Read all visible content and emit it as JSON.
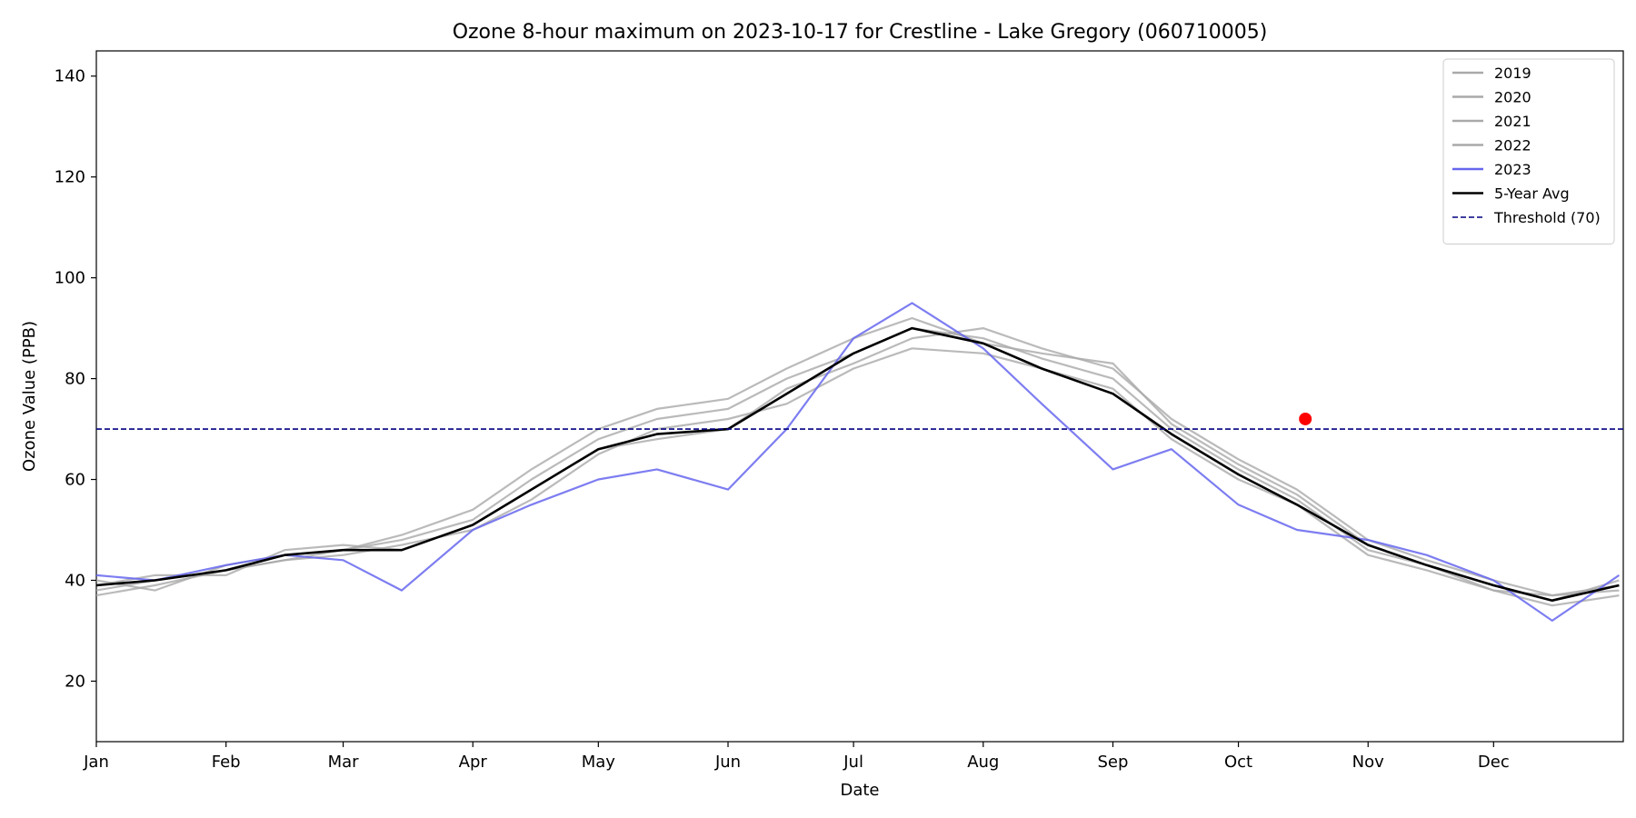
{
  "chart_data": {
    "type": "line",
    "title": "Ozone 8-hour maximum on 2023-10-17 for Crestline - Lake Gregory (060710005)",
    "xlabel": "Date",
    "ylabel": "Ozone Value (PPB)",
    "x_ticks": [
      "Jan",
      "Feb",
      "Mar",
      "Apr",
      "May",
      "Jun",
      "Jul",
      "Aug",
      "Sep",
      "Oct",
      "Nov",
      "Dec"
    ],
    "x_tick_days": [
      1,
      32,
      60,
      91,
      121,
      152,
      182,
      213,
      244,
      274,
      305,
      335
    ],
    "xlim": [
      1,
      366
    ],
    "ylim": [
      8,
      145
    ],
    "y_ticks": [
      20,
      40,
      60,
      80,
      100,
      120,
      140
    ],
    "grid": false,
    "legend_position": "top-right",
    "threshold": {
      "name": "Threshold (70)",
      "value": 70,
      "color": "#000080"
    },
    "highlight": {
      "date": "2023-10-17",
      "day_of_year": 290,
      "value": 72,
      "color": "#ff0000"
    },
    "colors": {
      "prior_years": "#a9a9a9",
      "current_year": "#6666ee",
      "average": "#000000"
    },
    "series": [
      {
        "name": "2019",
        "x": [
          1,
          15,
          32,
          46,
          60,
          74,
          91,
          105,
          121,
          135,
          152,
          166,
          182,
          196,
          213,
          227,
          244,
          258,
          274,
          288,
          305,
          319,
          335,
          349,
          365
        ],
        "values": [
          38,
          40,
          42,
          44,
          45,
          47,
          50,
          56,
          65,
          70,
          72,
          75,
          82,
          86,
          85,
          82,
          78,
          68,
          60,
          55,
          45,
          42,
          38,
          37,
          38
        ]
      },
      {
        "name": "2020",
        "x": [
          1,
          15,
          32,
          46,
          60,
          74,
          91,
          105,
          121,
          135,
          152,
          166,
          182,
          196,
          213,
          227,
          244,
          258,
          274,
          288,
          305,
          319,
          335,
          349,
          365
        ],
        "values": [
          40,
          38,
          43,
          45,
          46,
          48,
          52,
          60,
          68,
          72,
          74,
          80,
          85,
          90,
          88,
          84,
          80,
          70,
          62,
          56,
          46,
          43,
          39,
          36,
          40
        ]
      },
      {
        "name": "2021",
        "x": [
          1,
          15,
          32,
          46,
          60,
          74,
          91,
          105,
          121,
          135,
          152,
          166,
          182,
          196,
          213,
          227,
          244,
          258,
          274,
          288,
          305,
          319,
          335,
          349,
          365
        ],
        "values": [
          39,
          41,
          41,
          46,
          47,
          46,
          51,
          58,
          66,
          68,
          70,
          78,
          83,
          88,
          90,
          86,
          82,
          72,
          64,
          58,
          48,
          44,
          40,
          37,
          39
        ]
      },
      {
        "name": "2022",
        "x": [
          1,
          15,
          32,
          46,
          60,
          74,
          91,
          105,
          121,
          135,
          152,
          166,
          182,
          196,
          213,
          227,
          244,
          258,
          274,
          288,
          305,
          319,
          335,
          349,
          365
        ],
        "values": [
          37,
          39,
          42,
          44,
          46,
          49,
          54,
          62,
          70,
          74,
          76,
          82,
          88,
          92,
          87,
          85,
          83,
          71,
          63,
          57,
          47,
          43,
          38,
          35,
          37
        ]
      },
      {
        "name": "2023",
        "x": [
          1,
          15,
          32,
          46,
          60,
          74,
          91,
          105,
          121,
          135,
          152,
          166,
          182,
          196,
          213,
          227,
          244,
          258,
          274,
          288,
          305,
          319,
          335,
          349,
          365
        ],
        "values": [
          41,
          40,
          43,
          45,
          44,
          38,
          50,
          55,
          60,
          62,
          58,
          70,
          88,
          95,
          86,
          75,
          62,
          66,
          55,
          50,
          48,
          45,
          40,
          32,
          41
        ]
      },
      {
        "name": "5-Year Avg",
        "x": [
          1,
          15,
          32,
          46,
          60,
          74,
          91,
          105,
          121,
          135,
          152,
          166,
          182,
          196,
          213,
          227,
          244,
          258,
          274,
          288,
          305,
          319,
          335,
          349,
          365
        ],
        "values": [
          39,
          40,
          42,
          45,
          46,
          46,
          51,
          58,
          66,
          69,
          70,
          77,
          85,
          90,
          87,
          82,
          77,
          69,
          61,
          55,
          47,
          43,
          39,
          36,
          39
        ]
      }
    ]
  }
}
